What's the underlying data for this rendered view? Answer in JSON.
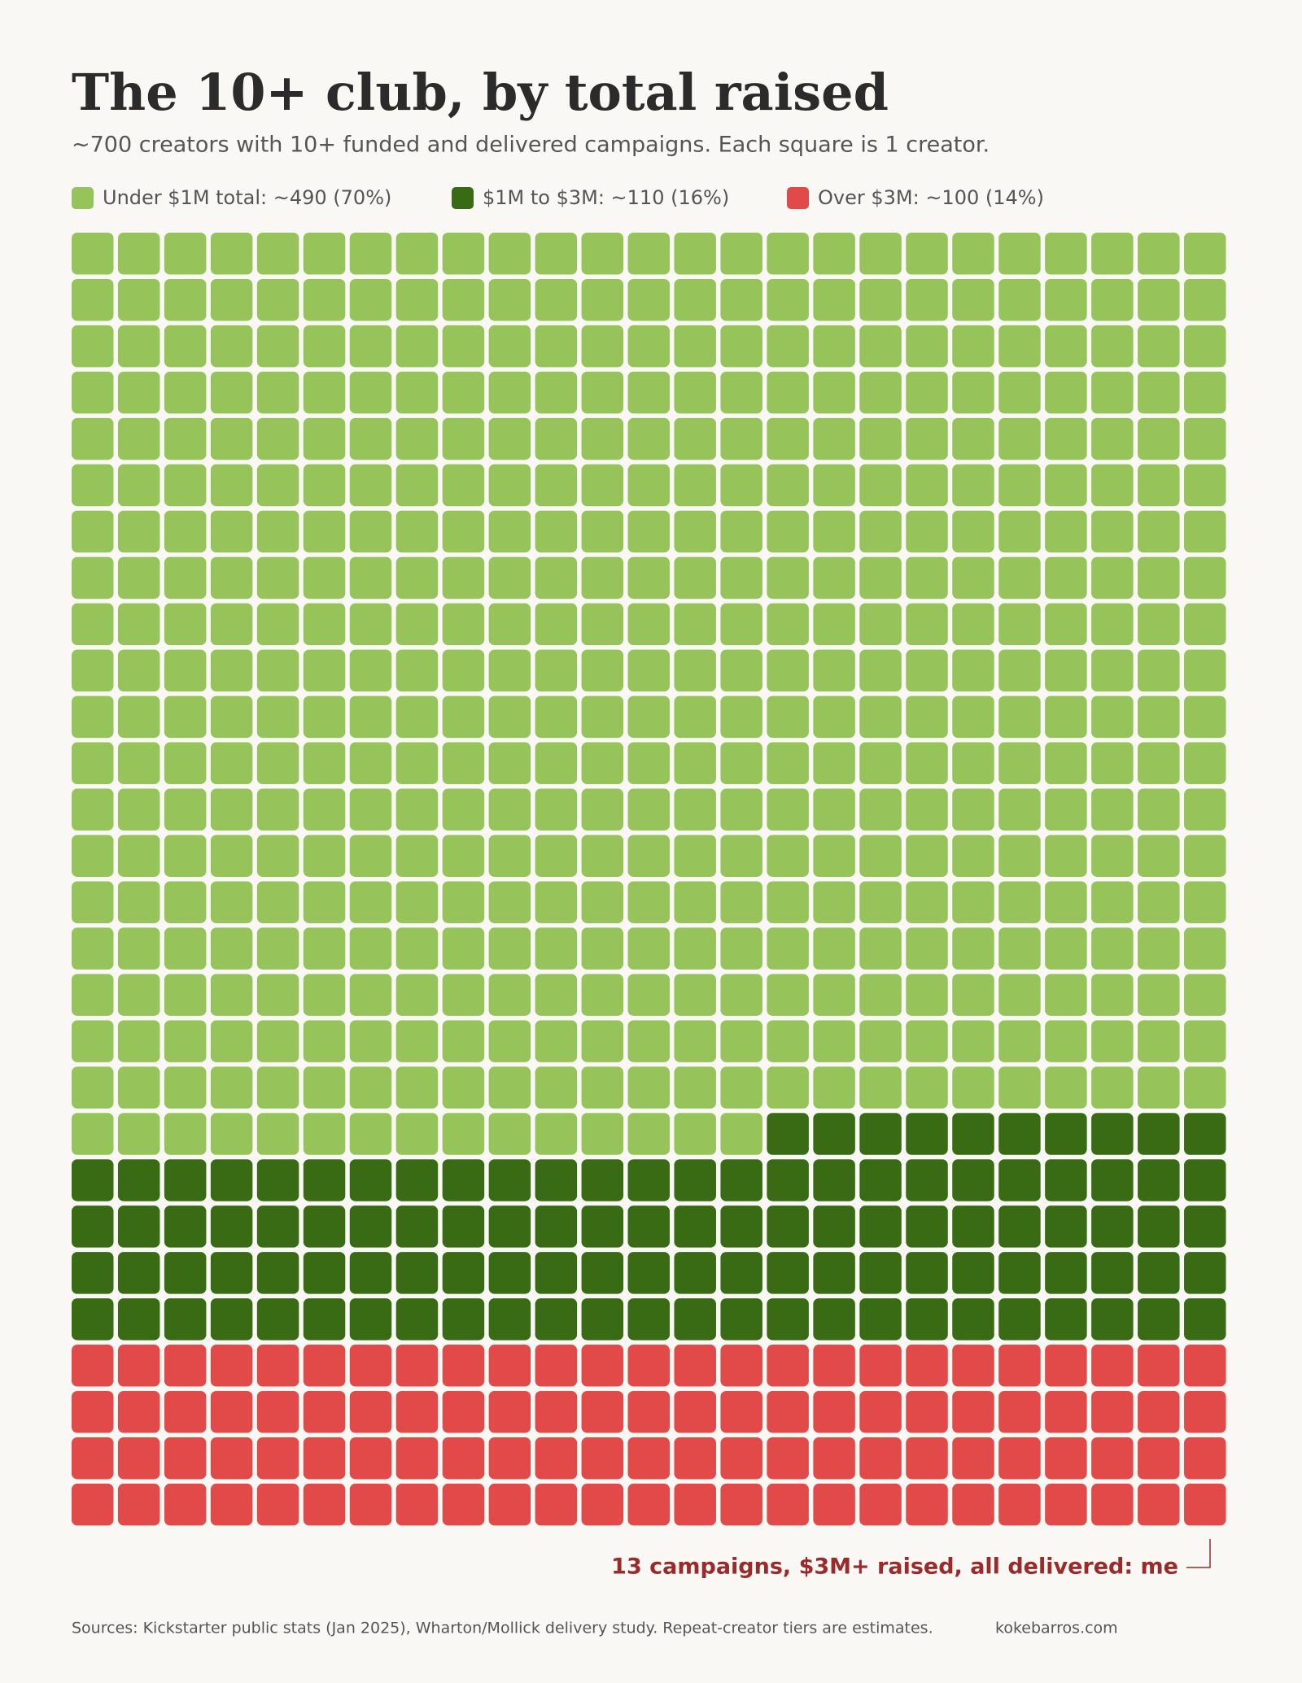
{
  "chart_data": {
    "type": "waffle",
    "title": "The 10+ club, by total raised",
    "subtitle": "~700 creators with 10+ funded and delivered campaigns. Each square is 1 creator.",
    "series": [
      {
        "name": "Under $1M total: ~490 (70%)",
        "color": "#97c45a",
        "value": 490
      },
      {
        "name": "$1M to $3M: ~110 (16%)",
        "color": "#386b14",
        "value": 110
      },
      {
        "name": "Over $3M: ~100 (14%)",
        "color": "#e24a4a",
        "value": 100
      }
    ],
    "annotation": "13 campaigns, $3M+ raised, all delivered: me",
    "source": "Sources: Kickstarter public stats (Jan 2025), Wharton/Mollick delivery study. Repeat-creator tiers are estimates.",
    "credit": "kokebarros.com"
  }
}
